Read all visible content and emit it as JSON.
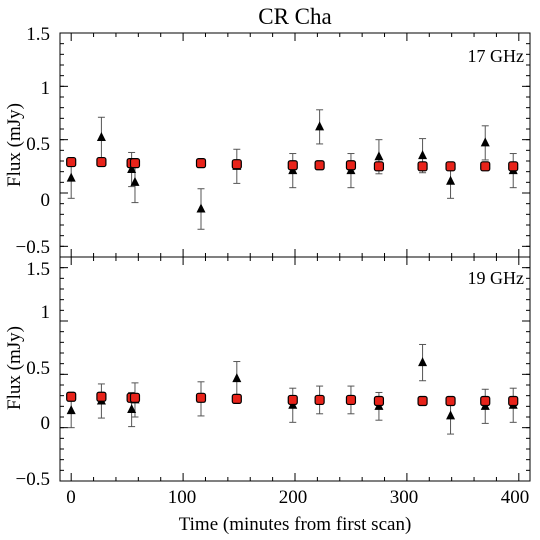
{
  "chart_data": {
    "type": "scatter",
    "title": "CR Cha",
    "xlabel": "Time (minutes from first scan)",
    "ylabel": "Flux (mJy)",
    "xlim": [
      -10,
      410
    ],
    "xticks": [
      "0",
      "100",
      "200",
      "300",
      "400"
    ],
    "grid": false,
    "panels": [
      {
        "label": "17 GHz",
        "ylim": [
          -0.6,
          1.5
        ],
        "yticks": [
          "1.5",
          "1",
          "0.5",
          "0",
          "−0.5"
        ],
        "series": [
          {
            "marker": "triangle",
            "color": "#000000",
            "points": [
              {
                "x": 0,
                "y": 0.14,
                "err": 0.19
              },
              {
                "x": 27,
                "y": 0.52,
                "err": 0.19
              },
              {
                "x": 54,
                "y": 0.22,
                "err": 0.16
              },
              {
                "x": 57,
                "y": 0.1,
                "err": 0.19
              },
              {
                "x": 116,
                "y": -0.15,
                "err": 0.19
              },
              {
                "x": 148,
                "y": 0.25,
                "err": 0.16
              },
              {
                "x": 198,
                "y": 0.21,
                "err": 0.16
              },
              {
                "x": 222,
                "y": 0.62,
                "err": 0.16
              },
              {
                "x": 250,
                "y": 0.21,
                "err": 0.16
              },
              {
                "x": 275,
                "y": 0.34,
                "err": 0.16
              },
              {
                "x": 314,
                "y": 0.35,
                "err": 0.16
              },
              {
                "x": 339,
                "y": 0.11,
                "err": 0.16
              },
              {
                "x": 370,
                "y": 0.47,
                "err": 0.16
              },
              {
                "x": 395,
                "y": 0.21,
                "err": 0.16
              }
            ]
          },
          {
            "marker": "square",
            "color": "#e8231a",
            "points": [
              {
                "x": 0,
                "y": 0.29,
                "err": 0.03
              },
              {
                "x": 27,
                "y": 0.29,
                "err": 0.03
              },
              {
                "x": 54,
                "y": 0.28,
                "err": 0.03
              },
              {
                "x": 57,
                "y": 0.28,
                "err": 0.03
              },
              {
                "x": 116,
                "y": 0.28,
                "err": 0.03
              },
              {
                "x": 148,
                "y": 0.27,
                "err": 0.03
              },
              {
                "x": 198,
                "y": 0.26,
                "err": 0.03
              },
              {
                "x": 222,
                "y": 0.26,
                "err": 0.03
              },
              {
                "x": 250,
                "y": 0.26,
                "err": 0.03
              },
              {
                "x": 275,
                "y": 0.25,
                "err": 0.03
              },
              {
                "x": 314,
                "y": 0.25,
                "err": 0.03
              },
              {
                "x": 339,
                "y": 0.25,
                "err": 0.03
              },
              {
                "x": 370,
                "y": 0.25,
                "err": 0.03
              },
              {
                "x": 395,
                "y": 0.25,
                "err": 0.03
              }
            ]
          }
        ]
      },
      {
        "label": "19 GHz",
        "ylim": [
          -0.5,
          1.6
        ],
        "yticks": [
          "1.5",
          "1",
          "0.5",
          "0",
          "−0.5"
        ],
        "series": [
          {
            "marker": "triangle",
            "color": "#000000",
            "points": [
              {
                "x": 0,
                "y": 0.16,
                "err": 0.16
              },
              {
                "x": 27,
                "y": 0.25,
                "err": 0.16
              },
              {
                "x": 54,
                "y": 0.17,
                "err": 0.16
              },
              {
                "x": 57,
                "y": 0.26,
                "err": 0.16
              },
              {
                "x": 116,
                "y": 0.27,
                "err": 0.16
              },
              {
                "x": 148,
                "y": 0.46,
                "err": 0.16
              },
              {
                "x": 198,
                "y": 0.21,
                "err": 0.16
              },
              {
                "x": 222,
                "y": 0.26,
                "err": 0.13
              },
              {
                "x": 250,
                "y": 0.26,
                "err": 0.13
              },
              {
                "x": 275,
                "y": 0.2,
                "err": 0.13
              },
              {
                "x": 314,
                "y": 0.61,
                "err": 0.17
              },
              {
                "x": 339,
                "y": 0.11,
                "err": 0.17
              },
              {
                "x": 370,
                "y": 0.2,
                "err": 0.16
              },
              {
                "x": 395,
                "y": 0.21,
                "err": 0.16
              }
            ]
          },
          {
            "marker": "square",
            "color": "#e8231a",
            "points": [
              {
                "x": 0,
                "y": 0.29,
                "err": 0.03
              },
              {
                "x": 27,
                "y": 0.29,
                "err": 0.03
              },
              {
                "x": 54,
                "y": 0.28,
                "err": 0.03
              },
              {
                "x": 57,
                "y": 0.28,
                "err": 0.03
              },
              {
                "x": 116,
                "y": 0.28,
                "err": 0.03
              },
              {
                "x": 148,
                "y": 0.27,
                "err": 0.03
              },
              {
                "x": 198,
                "y": 0.26,
                "err": 0.03
              },
              {
                "x": 222,
                "y": 0.26,
                "err": 0.03
              },
              {
                "x": 250,
                "y": 0.26,
                "err": 0.03
              },
              {
                "x": 275,
                "y": 0.25,
                "err": 0.03
              },
              {
                "x": 314,
                "y": 0.25,
                "err": 0.03
              },
              {
                "x": 339,
                "y": 0.25,
                "err": 0.03
              },
              {
                "x": 370,
                "y": 0.25,
                "err": 0.03
              },
              {
                "x": 395,
                "y": 0.25,
                "err": 0.03
              }
            ]
          }
        ]
      }
    ]
  }
}
